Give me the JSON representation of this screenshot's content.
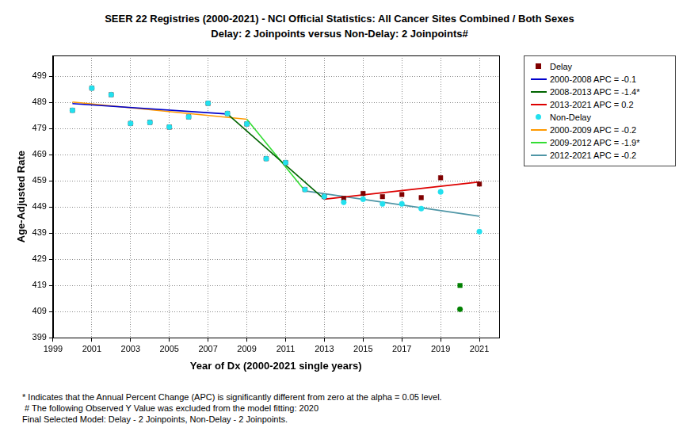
{
  "chart_data": {
    "type": "scatter",
    "title": "SEER 22 Registries (2000-2021) - NCI Official Statistics: All Cancer Sites Combined / Both Sexes",
    "subtitle": "Delay: 2 Joinpoints  versus  Non-Delay: 2 Joinpoints#",
    "x_label": "Year of Dx (2000-2021 single years)",
    "y_label": "Age-Adjusted Rate",
    "annotations": [
      "* Indicates that the Annual Percent Change (APC) is significantly different from zero at the alpha = 0.05 level.",
      " # The following Observed Y Value was excluded from the model fitting: 2020",
      "Final Selected Model: Delay - 2 Joinpoints, Non-Delay - 2 Joinpoints."
    ],
    "xlim": [
      1999,
      2022
    ],
    "xticks": [
      1999,
      2001,
      2003,
      2005,
      2007,
      2009,
      2011,
      2013,
      2015,
      2017,
      2019,
      2021
    ],
    "ylim": [
      399,
      507
    ],
    "yticks": [
      399,
      409,
      419,
      429,
      439,
      449,
      459,
      469,
      479,
      489,
      499
    ],
    "grid": true,
    "legend": "right",
    "series": [
      {
        "name": "Delay",
        "type": "scatter",
        "marker": "square",
        "color": "#800000",
        "colors": [
          "#800000",
          "#800000",
          "#800000",
          "#800000",
          "#800000",
          "#800000",
          "#800000",
          "#800000",
          "#800000",
          "#800000",
          "#800000",
          "#800000",
          "#800000",
          "#800000",
          "#800000",
          "#800000",
          "#800000",
          "#800000",
          "#800000",
          "#800000",
          "#008000",
          "#800000"
        ],
        "x": [
          2000,
          2001,
          2002,
          2003,
          2004,
          2005,
          2006,
          2007,
          2008,
          2009,
          2010,
          2011,
          2012,
          2013,
          2014,
          2015,
          2016,
          2017,
          2018,
          2019,
          2020,
          2021
        ],
        "values": [
          486,
          494.5,
          492,
          481,
          481.4,
          479.6,
          483.5,
          488.7,
          484.8,
          480.8,
          467.5,
          466,
          455.7,
          453,
          452.3,
          454.2,
          453,
          453.8,
          452.6,
          460.2,
          419,
          457.8
        ]
      },
      {
        "name": "2000-2008 APC = -0.1",
        "type": "line",
        "line_style": "solid",
        "color": "#0000cc",
        "x": [
          2000,
          2008
        ],
        "values": [
          488.6,
          484.6
        ]
      },
      {
        "name": "2008-2013 APC = -1.4*",
        "type": "line",
        "line_style": "solid",
        "color": "#006400",
        "x": [
          2008,
          2013
        ],
        "values": [
          484.6,
          452
        ]
      },
      {
        "name": "2013-2021 APC = 0.2",
        "type": "line",
        "line_style": "solid",
        "color": "#dd0000",
        "x": [
          2013,
          2021
        ],
        "values": [
          452,
          458.6
        ]
      },
      {
        "name": "Non-Delay",
        "type": "scatter",
        "marker": "circle",
        "color": "#22e0ee",
        "colors": [
          "#22e0ee",
          "#22e0ee",
          "#22e0ee",
          "#22e0ee",
          "#22e0ee",
          "#22e0ee",
          "#22e0ee",
          "#22e0ee",
          "#22e0ee",
          "#22e0ee",
          "#22e0ee",
          "#22e0ee",
          "#22e0ee",
          "#22e0ee",
          "#22e0ee",
          "#22e0ee",
          "#22e0ee",
          "#22e0ee",
          "#22e0ee",
          "#22e0ee",
          "#008000",
          "#22e0ee"
        ],
        "x": [
          2000,
          2001,
          2002,
          2003,
          2004,
          2005,
          2006,
          2007,
          2008,
          2009,
          2010,
          2011,
          2012,
          2013,
          2014,
          2015,
          2016,
          2017,
          2018,
          2019,
          2020,
          2021
        ],
        "values": [
          486,
          494.5,
          492,
          481,
          481.4,
          479.6,
          483.5,
          488.7,
          484.8,
          480.8,
          467.5,
          466,
          455.7,
          453,
          450.8,
          452,
          450.2,
          450.2,
          448.4,
          454.8,
          409.9,
          439.6
        ]
      },
      {
        "name": "2000-2009 APC = -0.2",
        "type": "line",
        "line_style": "solid",
        "color": "#ff9900",
        "x": [
          2000,
          2009
        ],
        "values": [
          489.2,
          482.6
        ]
      },
      {
        "name": "2009-2012 APC = -1.9*",
        "type": "line",
        "line_style": "solid",
        "color": "#33dd33",
        "x": [
          2009,
          2012
        ],
        "values": [
          482.6,
          455.2
        ]
      },
      {
        "name": "2012-2021 APC = -0.2",
        "type": "line",
        "line_style": "solid",
        "color": "#4f96a6",
        "x": [
          2012,
          2021
        ],
        "values": [
          455.2,
          445.5
        ]
      }
    ]
  }
}
